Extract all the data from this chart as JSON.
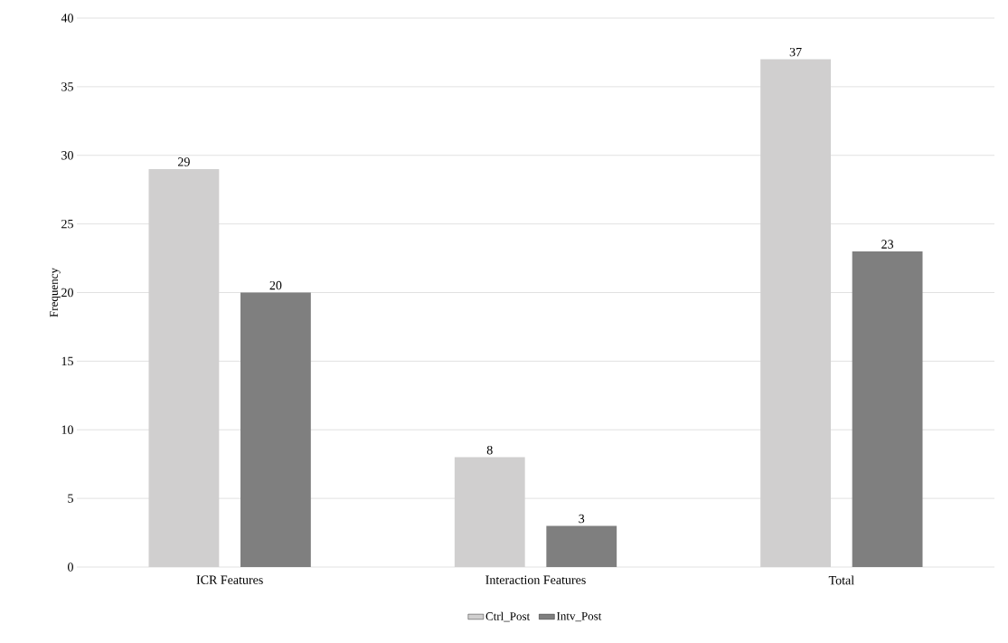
{
  "chart_data": {
    "type": "bar",
    "ylabel": "Frequency",
    "categories": [
      "ICR Features",
      "Interaction Features",
      "Total"
    ],
    "series": [
      {
        "name": "Ctrl_Post",
        "color": "#d0cfcf",
        "values": [
          29,
          8,
          37
        ]
      },
      {
        "name": "Intv_Post",
        "color": "#7f7f7f",
        "values": [
          20,
          3,
          23
        ]
      }
    ],
    "ylim": [
      0,
      40
    ],
    "yticks": [
      0,
      5,
      10,
      15,
      20,
      25,
      30,
      35,
      40
    ],
    "grid": "y",
    "legend": "bottom",
    "data_labels": true
  }
}
